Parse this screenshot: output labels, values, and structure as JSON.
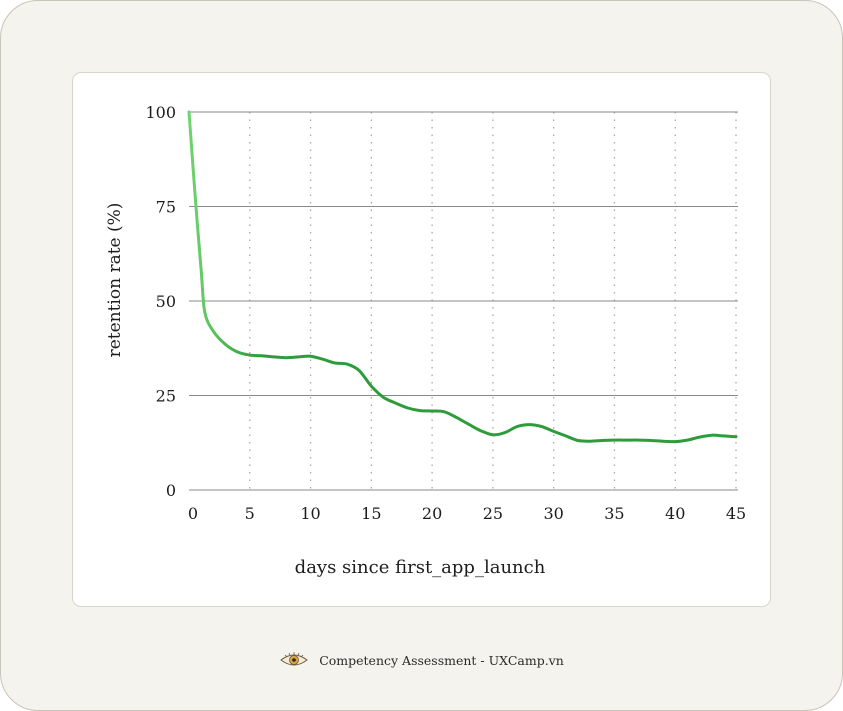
{
  "colors": {
    "line_start": "#6fd46f",
    "line_main": "#2e9c3a",
    "grid_h": "#8a8a8a",
    "grid_v": "#a8a8a8",
    "background": "#f5f3ee",
    "card": "#ffffff"
  },
  "chart_data": {
    "type": "line",
    "title": "",
    "xlabel": "days since first_app_launch",
    "ylabel": "retention rate  (%)",
    "xlim": [
      0,
      45
    ],
    "ylim": [
      0,
      100
    ],
    "x_ticks": [
      "0",
      "5",
      "10",
      "15",
      "20",
      "25",
      "30",
      "35",
      "40",
      "45"
    ],
    "y_ticks": [
      "0",
      "25",
      "50",
      "75",
      "100"
    ],
    "grid": {
      "horizontal": "solid",
      "vertical": "dotted"
    },
    "series": [
      {
        "x": [
          0,
          0.5,
          1,
          1.3,
          2,
          3,
          4,
          5,
          6,
          7,
          8,
          9,
          10,
          11,
          12,
          13,
          14,
          15,
          16,
          17,
          18,
          19,
          20,
          21,
          22,
          23,
          24,
          25,
          26,
          27,
          28,
          29,
          30,
          31,
          32,
          33,
          34,
          35,
          36,
          37,
          38,
          39,
          40,
          41,
          42,
          43,
          44,
          45
        ],
        "y": [
          100,
          78,
          58,
          47,
          42,
          38.5,
          36.5,
          35.7,
          35.5,
          35.2,
          35,
          35.2,
          35.4,
          34.6,
          33.6,
          33.3,
          31.6,
          27.5,
          24.5,
          23,
          21.7,
          21,
          20.9,
          20.7,
          19.2,
          17.4,
          15.7,
          14.6,
          15.2,
          16.8,
          17.3,
          16.8,
          15.5,
          14.3,
          13.1,
          12.9,
          13.1,
          13.2,
          13.2,
          13.2,
          13.1,
          12.9,
          12.8,
          13.2,
          14,
          14.5,
          14.3,
          14.1
        ]
      }
    ]
  },
  "footer": {
    "icon": "eye-logo-icon",
    "text": "Competency Assessment - UXCamp.vn"
  }
}
